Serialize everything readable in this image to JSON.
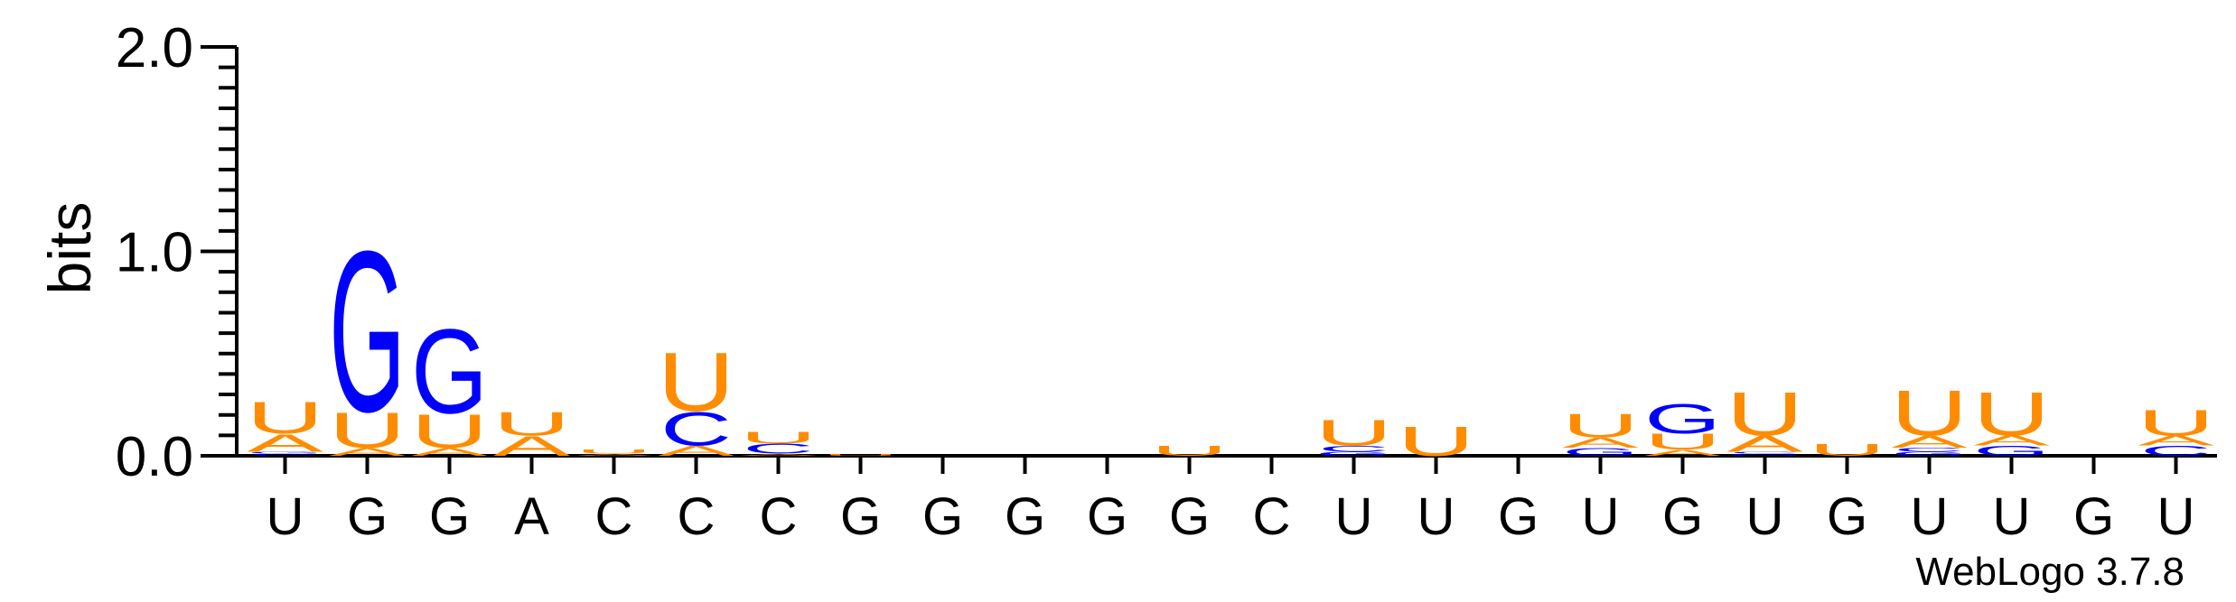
{
  "chart_data": {
    "type": "sequence-logo",
    "ylabel": "bits",
    "ylim": [
      0,
      2
    ],
    "yticks": [
      "0.0",
      "1.0",
      "2.0"
    ],
    "x_labels": [
      "U",
      "G",
      "G",
      "A",
      "C",
      "C",
      "C",
      "G",
      "G",
      "G",
      "G",
      "G",
      "C",
      "U",
      "U",
      "G",
      "U",
      "G",
      "U",
      "G",
      "U",
      "U",
      "G",
      "U"
    ],
    "credit": "WebLogo 3.7.8",
    "colors": {
      "U": "#ff8c00",
      "A": "#ff8c00",
      "G": "#0000ff",
      "C": "#0000ff"
    },
    "columns": [
      [
        {
          "l": "C",
          "v": 0.01
        },
        {
          "l": "G",
          "v": 0.01
        },
        {
          "l": "A",
          "v": 0.09
        },
        {
          "l": "U",
          "v": 0.16
        }
      ],
      [
        {
          "l": "A",
          "v": 0.04
        },
        {
          "l": "U",
          "v": 0.18
        },
        {
          "l": "G",
          "v": 0.82
        }
      ],
      [
        {
          "l": "A",
          "v": 0.04
        },
        {
          "l": "U",
          "v": 0.17
        },
        {
          "l": "G",
          "v": 0.43
        }
      ],
      [
        {
          "l": "A",
          "v": 0.1
        },
        {
          "l": "U",
          "v": 0.12
        }
      ],
      [
        {
          "l": "A",
          "v": 0.01
        },
        {
          "l": "U",
          "v": 0.02
        }
      ],
      [
        {
          "l": "A",
          "v": 0.05
        },
        {
          "l": "C",
          "v": 0.17
        },
        {
          "l": "U",
          "v": 0.3
        }
      ],
      [
        {
          "l": "A",
          "v": 0.01
        },
        {
          "l": "C",
          "v": 0.05
        },
        {
          "l": "U",
          "v": 0.06
        }
      ],
      [
        {
          "l": "U",
          "v": 0.01
        }
      ],
      [],
      [],
      [],
      [
        {
          "l": "U",
          "v": 0.05
        }
      ],
      [],
      [
        {
          "l": "G",
          "v": 0.02
        },
        {
          "l": "C",
          "v": 0.03
        },
        {
          "l": "U",
          "v": 0.13
        }
      ],
      [
        {
          "l": "U",
          "v": 0.15
        }
      ],
      [],
      [
        {
          "l": "G",
          "v": 0.04
        },
        {
          "l": "A",
          "v": 0.05
        },
        {
          "l": "U",
          "v": 0.12
        }
      ],
      [
        {
          "l": "A",
          "v": 0.03
        },
        {
          "l": "U",
          "v": 0.08
        },
        {
          "l": "G",
          "v": 0.15
        }
      ],
      [
        {
          "l": "G",
          "v": 0.01
        },
        {
          "l": "C",
          "v": 0.01
        },
        {
          "l": "A",
          "v": 0.08
        },
        {
          "l": "U",
          "v": 0.22
        }
      ],
      [
        {
          "l": "U",
          "v": 0.06
        }
      ],
      [
        {
          "l": "G",
          "v": 0.02
        },
        {
          "l": "C",
          "v": 0.02
        },
        {
          "l": "A",
          "v": 0.06
        },
        {
          "l": "U",
          "v": 0.23
        }
      ],
      [
        {
          "l": "G",
          "v": 0.05
        },
        {
          "l": "A",
          "v": 0.05
        },
        {
          "l": "U",
          "v": 0.22
        }
      ],
      [],
      [
        {
          "l": "C",
          "v": 0.05
        },
        {
          "l": "A",
          "v": 0.05
        },
        {
          "l": "U",
          "v": 0.13
        }
      ]
    ]
  }
}
